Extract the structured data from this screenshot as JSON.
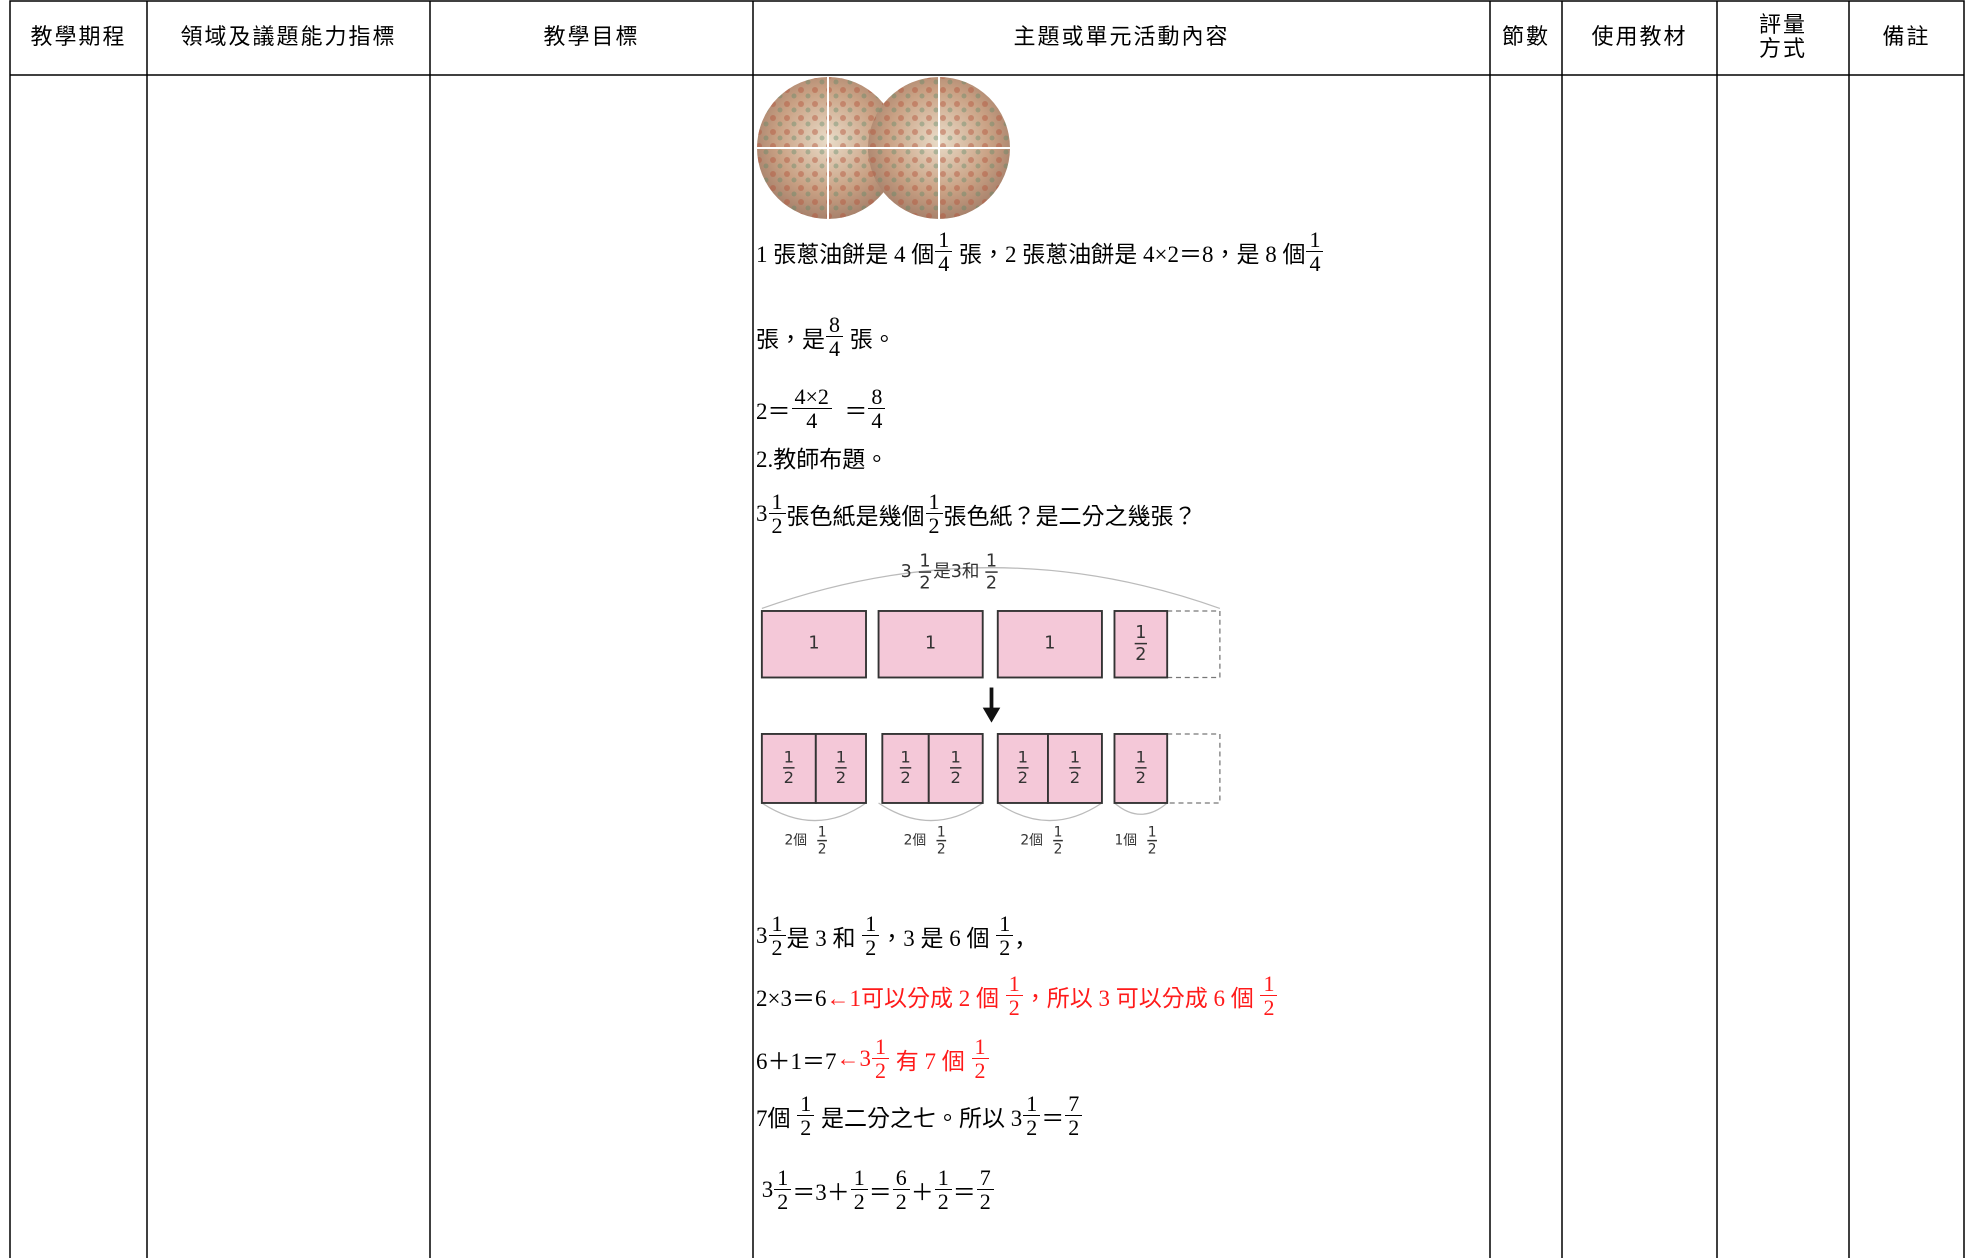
{
  "header": [
    "教學期程",
    "領域及議題能力指標",
    "教學目標",
    "主題或單元活動內容",
    "節數",
    "使用教材",
    "評量方式",
    "備註"
  ],
  "content": {
    "lines_before": [
      [
        "1 張蔥油餅是 4 個",
        {
          "num": "1",
          "den": "4"
        },
        " 張，2 張蔥油餅是 4×2＝8，是 8 個",
        {
          "num": "1",
          "den": "4"
        }
      ],
      [
        "張，是",
        {
          "num": "8",
          "den": "4"
        },
        " 張。"
      ],
      [
        "2＝",
        {
          "num": "4×2",
          "den": "4"
        },
        "  ＝",
        {
          "num": "8",
          "den": "4"
        }
      ],
      [
        "2.教師布題。"
      ],
      [
        "3",
        {
          "num": "1",
          "den": "2"
        },
        "張色紙是幾個",
        {
          "num": "1",
          "den": "2"
        },
        "張色紙？是二分之幾張？"
      ]
    ],
    "diagram": {
      "top_label": [
        "3",
        {
          "num": "1",
          "den": "2"
        },
        "是3和",
        {
          "num": "1",
          "den": "2"
        }
      ],
      "boxes": [
        "1",
        "1",
        "1",
        {
          "num": "1",
          "den": "2"
        }
      ],
      "split_cells": [
        {
          "num": "1",
          "den": "2"
        },
        {
          "num": "1",
          "den": "2"
        },
        {
          "num": "1",
          "den": "2"
        },
        {
          "num": "1",
          "den": "2"
        },
        {
          "num": "1",
          "den": "2"
        },
        {
          "num": "1",
          "den": "2"
        },
        {
          "num": "1",
          "den": "2"
        }
      ],
      "group_labels": [
        [
          "2個",
          {
            "num": "1",
            "den": "2"
          }
        ],
        [
          "2個",
          {
            "num": "1",
            "den": "2"
          }
        ],
        [
          "2個",
          {
            "num": "1",
            "den": "2"
          }
        ],
        [
          "1個",
          {
            "num": "1",
            "den": "2"
          }
        ]
      ]
    },
    "lines_after": [
      [
        "3",
        {
          "num": "1",
          "den": "2"
        },
        "是 3 和 ",
        {
          "num": "1",
          "den": "2"
        },
        "，3 是 6 個 ",
        {
          "num": "1",
          "den": "2"
        },
        "，"
      ],
      [
        "2×3＝6",
        {
          "text": "←1可以分成 2 個 ",
          "color": "red"
        },
        {
          "num": "1",
          "den": "2",
          "color": "red"
        },
        {
          "text": "，所以 3 可以分成 6 個 ",
          "color": "red"
        },
        {
          "num": "1",
          "den": "2",
          "color": "red"
        }
      ],
      [
        "6＋1＝7",
        {
          "text": "←3",
          "color": "red"
        },
        {
          "num": "1",
          "den": "2",
          "color": "red"
        },
        {
          "text": " 有 7 個 ",
          "color": "red"
        },
        {
          "num": "1",
          "den": "2",
          "color": "red"
        }
      ],
      [
        "7個 ",
        {
          "num": "1",
          "den": "2"
        },
        " 是二分之七。所以 3",
        {
          "num": "1",
          "den": "2"
        },
        "＝",
        {
          "num": "7",
          "den": "2"
        }
      ],
      [
        " 3",
        {
          "num": "1",
          "den": "2"
        },
        "＝3＋",
        {
          "num": "1",
          "den": "2"
        },
        "＝",
        {
          "num": "6",
          "den": "2"
        },
        "＋",
        {
          "num": "1",
          "den": "2"
        },
        "＝",
        {
          "num": "7",
          "den": "2"
        }
      ]
    ]
  }
}
